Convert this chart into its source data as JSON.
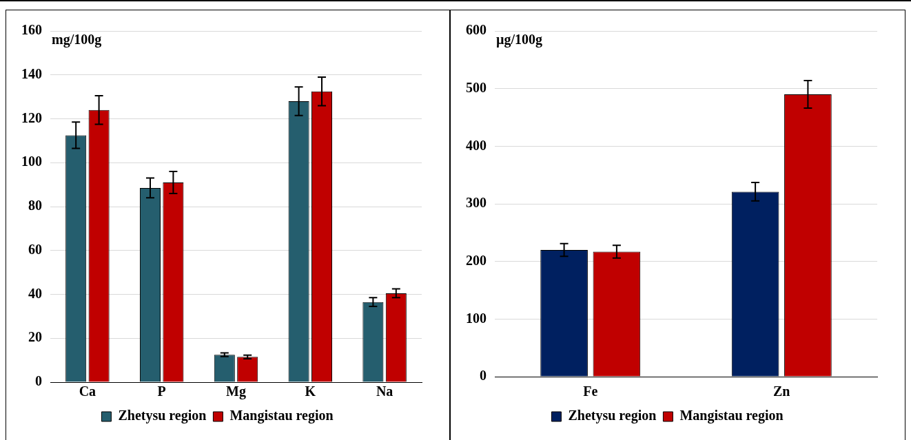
{
  "chart_data": [
    {
      "type": "bar",
      "ylabel": "mg/100g",
      "categories": [
        "Ca",
        "P",
        "Mg",
        "K",
        "Na"
      ],
      "series": [
        {
          "name": "Zhetysu region",
          "color": "#255e6e",
          "values": [
            112.5,
            88.5,
            12.5,
            128,
            36.5
          ],
          "errors": [
            6,
            4.5,
            0.8,
            6.5,
            2
          ]
        },
        {
          "name": "Mangistau region",
          "color": "#c00000",
          "values": [
            124,
            91,
            11.5,
            132.5,
            40.5
          ],
          "errors": [
            6.5,
            5,
            0.8,
            6.5,
            2
          ]
        }
      ],
      "ylim": [
        0,
        160
      ],
      "yticks": [
        0,
        20,
        40,
        60,
        80,
        100,
        120,
        140,
        160
      ],
      "grid": "y",
      "legend": "bottom"
    },
    {
      "type": "bar",
      "ylabel": "µg/100g",
      "categories": [
        "Fe",
        "Zn"
      ],
      "series": [
        {
          "name": "Zhetysu region",
          "color": "#002060",
          "values": [
            220,
            321
          ],
          "errors": [
            11,
            16
          ]
        },
        {
          "name": "Mangistau region",
          "color": "#c00000",
          "values": [
            217,
            490
          ],
          "errors": [
            11,
            24
          ]
        }
      ],
      "ylim": [
        0,
        600
      ],
      "yticks": [
        0,
        100,
        200,
        300,
        400,
        500,
        600
      ],
      "grid": "y",
      "legend": "bottom"
    }
  ]
}
